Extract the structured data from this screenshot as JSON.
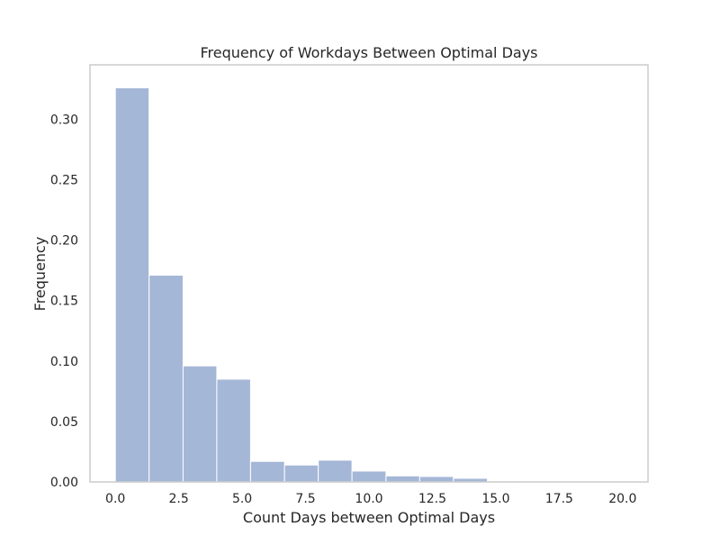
{
  "chart_data": {
    "type": "bar",
    "title": "Frequency of Workdays Between Optimal Days",
    "xlabel": "Count Days between Optimal Days",
    "ylabel": "Frequency",
    "xlim": [
      -1.0,
      21.0
    ],
    "ylim": [
      0,
      0.345
    ],
    "grid": false,
    "bar_color": "#a5b7d7",
    "bar_edge_color": "#ffffff",
    "frame_color": "#cccccc",
    "x_ticks": [
      0.0,
      2.5,
      5.0,
      7.5,
      10.0,
      12.5,
      15.0,
      17.5,
      20.0
    ],
    "x_tick_labels": [
      "0.0",
      "2.5",
      "5.0",
      "7.5",
      "10.0",
      "12.5",
      "15.0",
      "17.5",
      "20.0"
    ],
    "y_ticks": [
      0.0,
      0.05,
      0.1,
      0.15,
      0.2,
      0.25,
      0.3
    ],
    "y_tick_labels": [
      "0.00",
      "0.05",
      "0.10",
      "0.15",
      "0.20",
      "0.25",
      "0.30"
    ],
    "bin_edges": [
      0.0,
      1.33,
      2.67,
      4.0,
      5.33,
      6.67,
      8.0,
      9.33,
      10.67,
      12.0,
      13.33,
      14.67,
      16.0,
      17.33,
      18.67,
      20.0
    ],
    "values": [
      0.326,
      0.171,
      0.096,
      0.085,
      0.017,
      0.014,
      0.018,
      0.009,
      0.005,
      0.0045,
      0.003,
      0.0008,
      0.0005,
      0.0004,
      0.0004
    ]
  }
}
